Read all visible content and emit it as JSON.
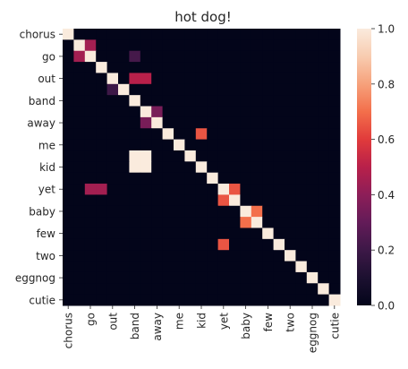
{
  "chart_data": {
    "type": "heatmap",
    "title": "hot dog!",
    "xlabel": "",
    "ylabel": "",
    "labels": [
      "chorus",
      "",
      "go",
      "",
      "out",
      "",
      "band",
      "",
      "away",
      "",
      "me",
      "",
      "kid",
      "",
      "yet",
      "",
      "baby",
      "",
      "few",
      "",
      "two",
      "",
      "eggnog",
      "",
      "cutie"
    ],
    "matrix": [
      [
        1,
        0,
        0,
        0,
        0,
        0,
        0,
        0,
        0,
        0,
        0,
        0,
        0,
        0,
        0,
        0,
        0,
        0,
        0,
        0,
        0,
        0,
        0,
        0,
        0
      ],
      [
        0,
        1,
        0.45,
        0,
        0,
        0,
        0,
        0,
        0,
        0,
        0,
        0,
        0,
        0,
        0,
        0,
        0,
        0,
        0,
        0,
        0,
        0,
        0,
        0,
        0
      ],
      [
        0,
        0.45,
        1,
        0,
        0,
        0,
        0,
        0,
        0,
        0,
        0,
        0,
        0,
        0,
        0,
        0,
        0,
        0,
        0,
        0,
        0,
        0,
        0,
        0,
        0
      ],
      [
        0,
        0,
        0,
        1,
        0,
        0,
        0,
        0,
        0,
        0,
        0,
        0,
        0,
        0,
        0,
        0,
        0,
        0,
        0,
        0,
        0,
        0,
        0,
        0,
        0
      ],
      [
        0,
        0,
        0,
        0,
        1,
        0,
        0,
        0,
        0,
        0,
        0,
        0,
        0,
        0,
        0,
        0,
        0,
        0,
        0,
        0,
        0,
        0,
        0,
        0,
        0
      ],
      [
        0,
        0,
        0,
        0,
        0,
        1,
        0,
        0,
        0,
        0,
        0,
        0,
        0,
        0,
        0,
        0,
        0,
        0,
        0,
        0,
        0,
        0,
        0,
        0,
        0
      ],
      [
        0,
        0,
        0,
        0,
        0,
        0,
        1,
        0,
        0,
        0,
        0,
        0,
        0,
        0,
        0,
        0,
        0,
        0,
        0,
        0,
        0,
        0,
        0,
        0,
        0
      ],
      [
        0,
        0,
        0,
        0,
        0,
        0,
        0,
        1,
        0.35,
        0,
        0,
        0,
        0,
        0,
        0,
        0,
        0,
        0,
        0,
        0,
        0,
        0,
        0,
        0,
        0
      ],
      [
        0,
        0,
        0,
        0,
        0,
        0,
        0,
        0.35,
        1,
        0,
        0,
        0,
        0,
        0,
        0,
        0,
        0,
        0,
        0,
        0,
        0,
        0,
        0,
        0,
        0
      ],
      [
        0,
        0,
        0,
        0,
        0,
        0,
        0,
        0,
        0,
        1,
        0,
        0,
        0,
        0,
        0,
        0,
        0,
        0,
        0,
        0,
        0,
        0,
        0,
        0,
        0
      ],
      [
        0,
        0,
        0,
        0,
        0,
        0,
        0,
        0,
        0,
        0,
        1,
        0,
        0,
        0,
        0,
        0,
        0,
        0,
        0,
        0,
        0,
        0,
        0,
        0,
        0
      ],
      [
        0,
        0,
        0,
        0,
        0,
        0,
        0,
        0,
        0,
        0,
        0,
        1,
        0,
        0,
        0,
        0,
        0,
        0,
        0,
        0,
        0,
        0,
        0,
        0,
        0
      ],
      [
        0,
        0,
        0,
        0,
        0,
        0,
        0,
        0,
        0,
        0,
        0,
        0,
        1,
        0,
        0,
        0,
        0,
        0,
        0,
        0,
        0,
        0,
        0,
        0,
        0
      ],
      [
        0,
        0,
        0,
        0,
        0,
        0,
        0,
        0,
        0,
        0,
        0,
        0,
        0,
        1,
        0,
        0,
        0,
        0,
        0,
        0,
        0,
        0,
        0,
        0,
        0
      ],
      [
        0,
        0,
        0,
        0,
        0,
        0,
        0,
        0,
        0,
        0,
        0,
        0,
        0,
        0,
        1,
        0.65,
        0,
        0,
        0,
        0,
        0,
        0,
        0,
        0,
        0
      ],
      [
        0,
        0,
        0,
        0,
        0,
        0,
        0,
        0,
        0,
        0,
        0,
        0,
        0,
        0,
        0.65,
        1,
        0,
        0,
        0,
        0,
        0,
        0,
        0,
        0,
        0
      ],
      [
        0,
        0,
        0,
        0,
        0,
        0,
        0,
        0,
        0,
        0,
        0,
        0,
        0,
        0,
        0,
        0,
        1,
        0.7,
        0,
        0,
        0,
        0,
        0,
        0,
        0
      ],
      [
        0,
        0,
        0,
        0,
        0,
        0,
        0,
        0,
        0,
        0,
        0,
        0,
        0,
        0,
        0,
        0,
        0.7,
        1,
        0,
        0,
        0,
        0,
        0,
        0,
        0
      ],
      [
        0,
        0,
        0,
        0,
        0,
        0,
        0,
        0,
        0,
        0,
        0,
        0,
        0,
        0,
        0,
        0,
        0,
        0,
        1,
        0,
        0,
        0,
        0,
        0,
        0
      ],
      [
        0,
        0,
        0,
        0,
        0,
        0,
        0,
        0,
        0,
        0,
        0,
        0,
        0,
        0,
        0,
        0,
        0,
        0,
        0,
        1,
        0,
        0,
        0,
        0,
        0
      ],
      [
        0,
        0,
        0,
        0,
        0,
        0,
        0,
        0,
        0,
        0,
        0,
        0,
        0,
        0,
        0,
        0,
        0,
        0,
        0,
        0,
        1,
        0,
        0,
        0,
        0
      ],
      [
        0,
        0,
        0,
        0,
        0,
        0,
        0,
        0,
        0,
        0,
        0,
        0,
        0,
        0,
        0,
        0,
        0,
        0,
        0,
        0,
        0,
        1,
        0,
        0,
        0
      ],
      [
        0,
        0,
        0,
        0,
        0,
        0,
        0,
        0,
        0,
        0,
        0,
        0,
        0,
        0,
        0,
        0,
        0,
        0,
        0,
        0,
        0,
        0,
        1,
        0,
        0
      ],
      [
        0,
        0,
        0,
        0,
        0,
        0,
        0,
        0,
        0,
        0,
        0,
        0,
        0,
        0,
        0,
        0,
        0,
        0,
        0,
        0,
        0,
        0,
        0,
        1,
        0
      ],
      [
        0,
        0,
        0,
        0,
        0,
        0,
        0,
        0,
        0,
        0,
        0,
        0,
        0,
        0,
        0,
        0,
        0,
        0,
        0,
        0,
        0,
        0,
        0,
        0,
        1
      ]
    ],
    "extra_cells": [
      {
        "row": 2,
        "col": 6,
        "value": 0.22
      },
      {
        "row": 4,
        "col": 6,
        "value": 0.5
      },
      {
        "row": 4,
        "col": 7,
        "value": 0.5
      },
      {
        "row": 5,
        "col": 4,
        "value": 0.2
      },
      {
        "row": 9,
        "col": 12,
        "value": 0.65
      },
      {
        "row": 11,
        "col": 6,
        "value": 1
      },
      {
        "row": 11,
        "col": 7,
        "value": 1
      },
      {
        "row": 12,
        "col": 6,
        "value": 1
      },
      {
        "row": 12,
        "col": 7,
        "value": 1
      },
      {
        "row": 14,
        "col": 2,
        "value": 0.45
      },
      {
        "row": 14,
        "col": 3,
        "value": 0.45
      },
      {
        "row": 19,
        "col": 14,
        "value": 0.65
      }
    ],
    "colorbar": {
      "min": 0,
      "max": 1,
      "ticks": [
        "0.0",
        "0.2",
        "0.4",
        "0.6",
        "0.8",
        "1.0"
      ],
      "colormap": "rocket"
    },
    "grid": false
  }
}
